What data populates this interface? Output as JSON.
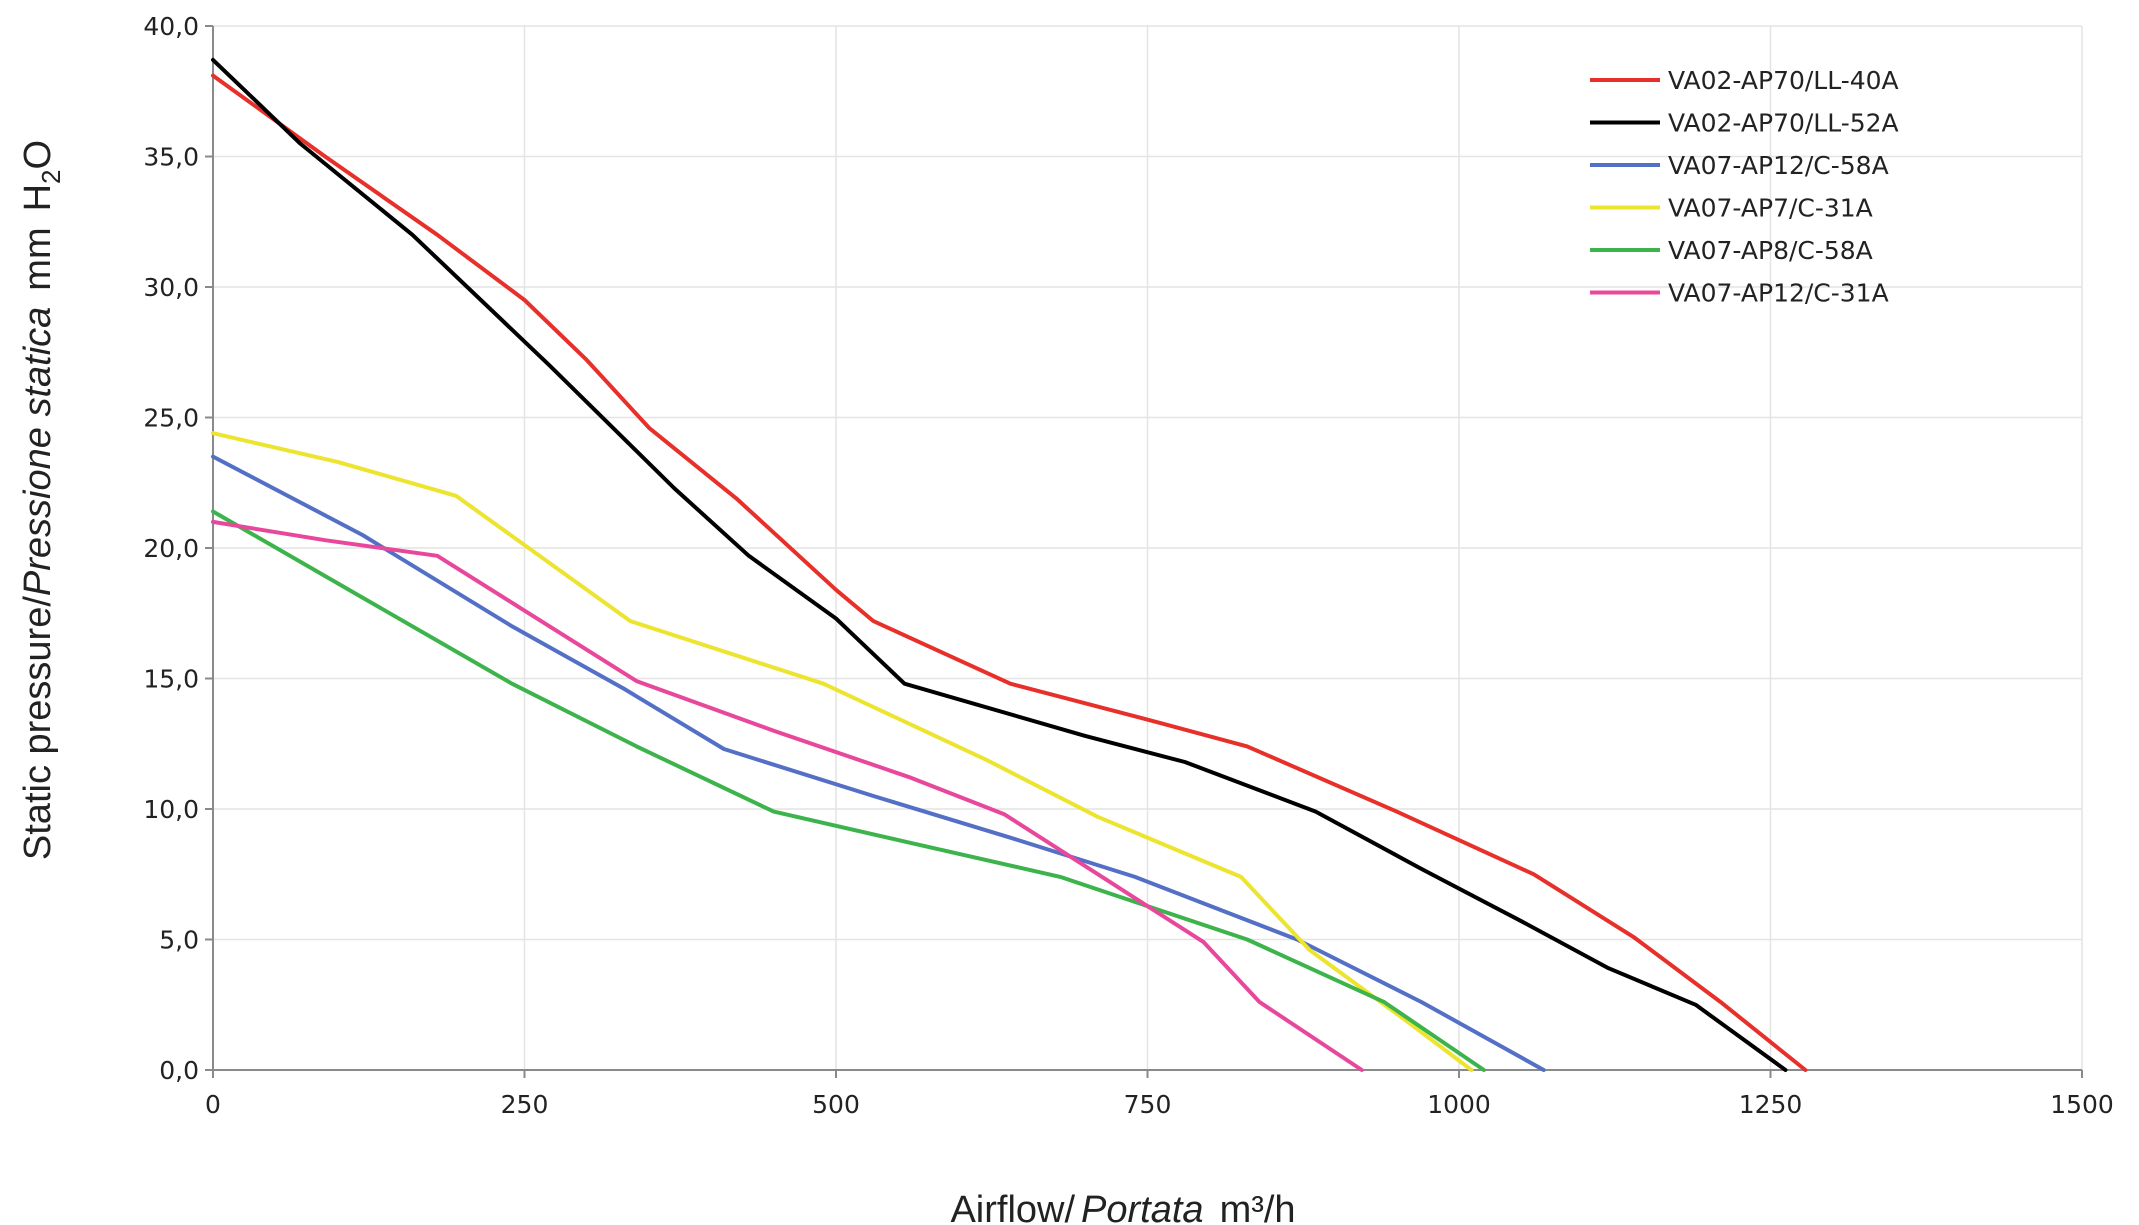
{
  "chart_data": {
    "type": "line",
    "title": "",
    "xlabel": {
      "main": "Airflow",
      "sep": "/",
      "italic": "Portata",
      "unit": "m³/h"
    },
    "ylabel": {
      "main": "Static pressure",
      "sep": "/",
      "italic": "Pressione statica",
      "unit_pre": "mm",
      "unit_h": "H",
      "unit_sub": "2",
      "unit_o": "O"
    },
    "xlim": [
      0,
      1500
    ],
    "ylim": [
      0,
      40
    ],
    "x_ticks": [
      0,
      250,
      500,
      750,
      1000,
      1250,
      1500
    ],
    "x_tick_labels": [
      "0",
      "250",
      "500",
      "750",
      "1000",
      "1250",
      "1500"
    ],
    "y_ticks": [
      0,
      5,
      10,
      15,
      20,
      25,
      30,
      35,
      40
    ],
    "y_tick_labels": [
      "0,0",
      "5,0",
      "10,0",
      "15,0",
      "20,0",
      "25,0",
      "30,0",
      "35,0",
      "40,0"
    ],
    "grid": true,
    "legend_position": "top-right",
    "series": [
      {
        "name": "VA02-AP70/LL-40A",
        "color": "#e8302b",
        "x": [
          0,
          90,
          180,
          250,
          300,
          350,
          420,
          500,
          530,
          640,
          760,
          830,
          950,
          1060,
          1140,
          1210,
          1278
        ],
        "y": [
          38.1,
          35.0,
          32.0,
          29.5,
          27.2,
          24.6,
          21.9,
          18.4,
          17.2,
          14.8,
          13.3,
          12.4,
          9.9,
          7.5,
          5.1,
          2.6,
          0
        ]
      },
      {
        "name": "VA02-AP70/LL-52A",
        "color": "#000000",
        "x": [
          0,
          70,
          160,
          270,
          370,
          430,
          500,
          555,
          700,
          780,
          885,
          970,
          1050,
          1120,
          1190,
          1262
        ],
        "y": [
          38.7,
          35.5,
          32.0,
          27.0,
          22.3,
          19.7,
          17.3,
          14.8,
          12.8,
          11.8,
          9.9,
          7.7,
          5.7,
          3.9,
          2.5,
          0
        ]
      },
      {
        "name": "VA07-AP12/C-58A",
        "color": "#5470c6",
        "x": [
          0,
          120,
          240,
          330,
          410,
          530,
          640,
          740,
          870,
          970,
          1068
        ],
        "y": [
          23.5,
          20.5,
          17.0,
          14.6,
          12.3,
          10.5,
          8.9,
          7.4,
          5.0,
          2.6,
          0
        ]
      },
      {
        "name": "VA07-AP7/C-31A",
        "color": "#ece42e",
        "x": [
          0,
          100,
          195,
          335,
          490,
          620,
          710,
          825,
          880,
          960,
          1010
        ],
        "y": [
          24.4,
          23.3,
          22.0,
          17.2,
          14.8,
          11.9,
          9.7,
          7.4,
          4.6,
          1.8,
          0
        ]
      },
      {
        "name": "VA07-AP8/C-58A",
        "color": "#3cb44b",
        "x": [
          0,
          120,
          240,
          340,
          450,
          560,
          680,
          830,
          940,
          1020
        ],
        "y": [
          21.4,
          18.1,
          14.8,
          12.4,
          9.9,
          8.7,
          7.4,
          5.0,
          2.6,
          0
        ]
      },
      {
        "name": "VA07-AP12/C-31A",
        "color": "#e8489b",
        "x": [
          0,
          90,
          180,
          340,
          450,
          560,
          635,
          720,
          795,
          840,
          922
        ],
        "y": [
          21.0,
          20.3,
          19.7,
          14.9,
          13.0,
          11.2,
          9.8,
          7.2,
          4.9,
          2.6,
          0
        ]
      }
    ]
  }
}
